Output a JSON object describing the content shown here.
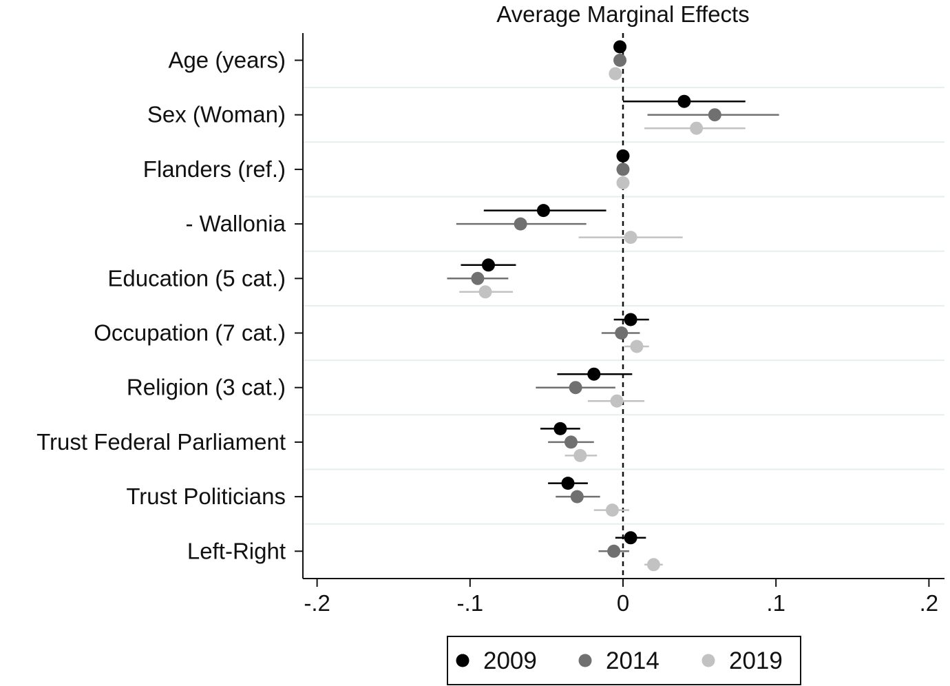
{
  "chart_data": {
    "type": "scatter",
    "subtype": "coefficient-plot",
    "title": "Average Marginal Effects",
    "xlabel": "",
    "ylabel": "",
    "xlim": [
      -0.2,
      0.2
    ],
    "xticks": [
      -0.2,
      -0.1,
      0,
      0.1,
      0.2
    ],
    "xtick_labels": [
      "-.2",
      "-.1",
      "0",
      ".1",
      ".2"
    ],
    "reference_line": 0,
    "categories": [
      "Age (years)",
      "Sex (Woman)",
      "Flanders (ref.)",
      "- Wallonia",
      "Education (5 cat.)",
      "Occupation (7 cat.)",
      "Religion (3 cat.)",
      "Trust Federal Parliament",
      "Trust Politicians",
      "Left-Right"
    ],
    "series": [
      {
        "name": "2009",
        "color": "#000000",
        "estimates": [
          -0.002,
          0.04,
          0.0,
          -0.052,
          -0.088,
          0.005,
          -0.019,
          -0.041,
          -0.036,
          0.005
        ],
        "ci_low": [
          -0.002,
          0.0,
          0.0,
          -0.091,
          -0.106,
          -0.006,
          -0.043,
          -0.054,
          -0.049,
          -0.005
        ],
        "ci_high": [
          -0.002,
          0.08,
          0.0,
          -0.011,
          -0.07,
          0.017,
          0.006,
          -0.028,
          -0.023,
          0.015
        ]
      },
      {
        "name": "2014",
        "color": "#707070",
        "estimates": [
          -0.002,
          0.06,
          0.0,
          -0.067,
          -0.095,
          -0.001,
          -0.031,
          -0.034,
          -0.03,
          -0.006
        ],
        "ci_low": [
          -0.002,
          0.016,
          0.0,
          -0.109,
          -0.115,
          -0.014,
          -0.057,
          -0.049,
          -0.044,
          -0.016
        ],
        "ci_high": [
          -0.002,
          0.102,
          0.0,
          -0.024,
          -0.075,
          0.011,
          -0.005,
          -0.019,
          -0.015,
          0.004
        ]
      },
      {
        "name": "2019",
        "color": "#c2c2c2",
        "estimates": [
          -0.005,
          0.048,
          0.0,
          0.005,
          -0.09,
          0.009,
          -0.004,
          -0.028,
          -0.007,
          0.02
        ],
        "ci_low": [
          -0.005,
          0.014,
          0.0,
          -0.029,
          -0.107,
          0.001,
          -0.023,
          -0.038,
          -0.019,
          0.014
        ],
        "ci_high": [
          -0.005,
          0.08,
          0.0,
          0.039,
          -0.072,
          0.017,
          0.014,
          -0.017,
          0.004,
          0.026
        ]
      }
    ],
    "legend": {
      "position": "bottom",
      "entries": [
        "2009",
        "2014",
        "2019"
      ]
    },
    "grid": "horizontal"
  }
}
